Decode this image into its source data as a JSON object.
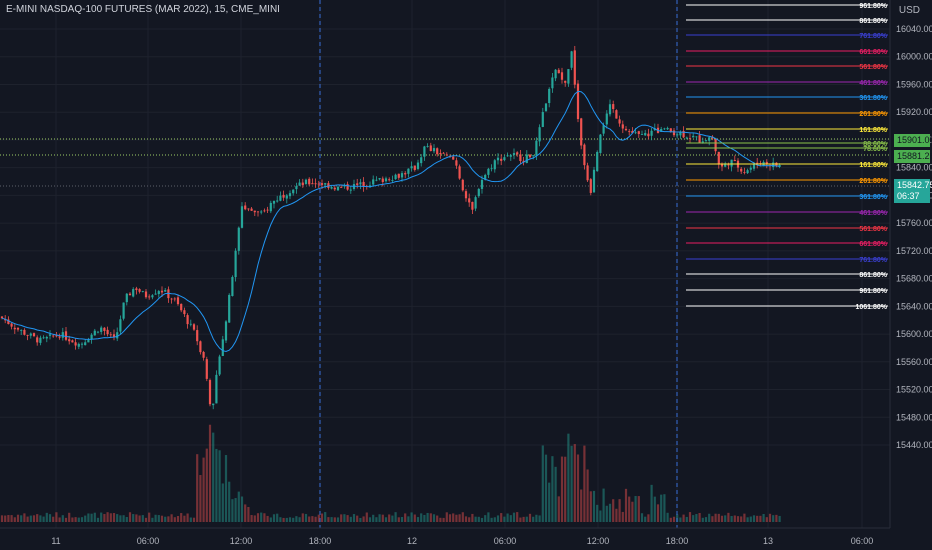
{
  "header": {
    "symbol_title": "E-MINI NASDAQ-100 FUTURES (MAR 2022), 15, CME_MINI",
    "currency": "USD"
  },
  "price_axis": {
    "labels": [
      "16040.00",
      "16000.00",
      "15960.00",
      "15920.00",
      "15880.00",
      "15840.00",
      "15800.00",
      "15760.00",
      "15720.00",
      "15680.00",
      "15640.00",
      "15600.00",
      "15560.00",
      "15520.00",
      "15480.00",
      "15440.00"
    ]
  },
  "time_axis": {
    "labels": [
      "11",
      "06:00",
      "12:00",
      "18:00",
      "12",
      "06:00",
      "12:00",
      "18:00",
      "13",
      "06:00"
    ]
  },
  "price_tags": {
    "level_a": {
      "value": "15901.00",
      "color": "#4caf50"
    },
    "level_b": {
      "value": "15881.25",
      "color": "#4caf50"
    },
    "last_price": {
      "value": "15842.75",
      "countdown": "06:37",
      "color": "#26a69a"
    }
  },
  "fib_levels": [
    {
      "label": "961.80%",
      "color": "#ffffff"
    },
    {
      "label": "861.80%",
      "color": "#ffffff"
    },
    {
      "label": "761.80%",
      "color": "#3a3fd1"
    },
    {
      "label": "661.80%",
      "color": "#e91e63"
    },
    {
      "label": "561.80%",
      "color": "#f23645"
    },
    {
      "label": "461.80%",
      "color": "#9c27b0"
    },
    {
      "label": "361.80%",
      "color": "#2196f3"
    },
    {
      "label": "261.80%",
      "color": "#ff9800"
    },
    {
      "label": "161.80%",
      "color": "#ffeb3b"
    },
    {
      "label": "88.60%",
      "color": "#8bc34a"
    },
    {
      "label": "78.60%",
      "color": "#8bc34a"
    },
    {
      "label": "161.80%",
      "color": "#ffeb3b"
    },
    {
      "label": "261.80%",
      "color": "#ff9800"
    },
    {
      "label": "361.80%",
      "color": "#2196f3"
    },
    {
      "label": "461.80%",
      "color": "#9c27b0"
    },
    {
      "label": "561.80%",
      "color": "#f23645"
    },
    {
      "label": "661.80%",
      "color": "#e91e63"
    },
    {
      "label": "761.80%",
      "color": "#3a3fd1"
    },
    {
      "label": "861.80%",
      "color": "#ffffff"
    },
    {
      "label": "961.80%",
      "color": "#ffffff"
    },
    {
      "label": "1061.80%",
      "color": "#ffffff"
    }
  ],
  "colors": {
    "background": "#131722",
    "up": "#26a69a",
    "down": "#ef5350",
    "ma": "#2196f3",
    "grid": "#1e222d",
    "axis_text": "#b2b5be"
  }
}
